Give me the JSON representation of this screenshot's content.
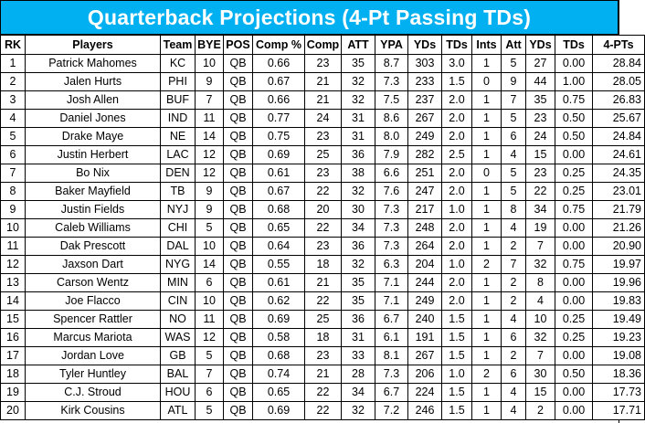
{
  "title": "Quarterback Projections (4-Pt Passing TDs)",
  "colors": {
    "title_background": "#00b0f0",
    "title_text": "#ffffff",
    "grid_lines": "#000000"
  },
  "columns": [
    "RK",
    "Players",
    "Team",
    "BYE",
    "POS",
    "Comp %",
    "Comp",
    "ATT",
    "YPA",
    "YDs",
    "TDs",
    "Ints",
    "Att",
    "YDs",
    "TDs",
    "4-PTs"
  ],
  "rows": [
    [
      "1",
      "Patrick Mahomes",
      "KC",
      "10",
      "QB",
      "0.66",
      "23",
      "35",
      "8.7",
      "303",
      "3.0",
      "1",
      "5",
      "27",
      "0.00",
      "28.84"
    ],
    [
      "2",
      "Jalen Hurts",
      "PHI",
      "9",
      "QB",
      "0.67",
      "21",
      "32",
      "7.3",
      "233",
      "1.5",
      "0",
      "9",
      "44",
      "1.00",
      "28.05"
    ],
    [
      "3",
      "Josh Allen",
      "BUF",
      "7",
      "QB",
      "0.66",
      "21",
      "32",
      "7.5",
      "237",
      "2.0",
      "1",
      "7",
      "35",
      "0.75",
      "26.83"
    ],
    [
      "4",
      "Daniel Jones",
      "IND",
      "11",
      "QB",
      "0.77",
      "24",
      "31",
      "8.6",
      "267",
      "2.0",
      "1",
      "5",
      "23",
      "0.50",
      "25.67"
    ],
    [
      "5",
      "Drake Maye",
      "NE",
      "14",
      "QB",
      "0.75",
      "23",
      "31",
      "8.0",
      "249",
      "2.0",
      "1",
      "6",
      "24",
      "0.50",
      "24.84"
    ],
    [
      "6",
      "Justin Herbert",
      "LAC",
      "12",
      "QB",
      "0.69",
      "25",
      "36",
      "7.9",
      "282",
      "2.5",
      "1",
      "4",
      "15",
      "0.00",
      "24.61"
    ],
    [
      "7",
      "Bo Nix",
      "DEN",
      "12",
      "QB",
      "0.61",
      "23",
      "38",
      "6.6",
      "251",
      "2.0",
      "0",
      "5",
      "23",
      "0.25",
      "24.35"
    ],
    [
      "8",
      "Baker Mayfield",
      "TB",
      "9",
      "QB",
      "0.67",
      "22",
      "32",
      "7.6",
      "247",
      "2.0",
      "1",
      "5",
      "22",
      "0.25",
      "23.01"
    ],
    [
      "9",
      "Justin Fields",
      "NYJ",
      "9",
      "QB",
      "0.68",
      "20",
      "30",
      "7.3",
      "217",
      "1.0",
      "1",
      "8",
      "34",
      "0.75",
      "21.79"
    ],
    [
      "10",
      "Caleb Williams",
      "CHI",
      "5",
      "QB",
      "0.65",
      "22",
      "34",
      "7.3",
      "248",
      "2.0",
      "1",
      "4",
      "19",
      "0.00",
      "21.26"
    ],
    [
      "11",
      "Dak Prescott",
      "DAL",
      "10",
      "QB",
      "0.64",
      "23",
      "36",
      "7.3",
      "264",
      "2.0",
      "1",
      "2",
      "7",
      "0.00",
      "20.90"
    ],
    [
      "12",
      "Jaxson Dart",
      "NYG",
      "14",
      "QB",
      "0.55",
      "18",
      "32",
      "6.3",
      "204",
      "1.0",
      "2",
      "7",
      "32",
      "0.75",
      "19.97"
    ],
    [
      "13",
      "Carson Wentz",
      "MIN",
      "6",
      "QB",
      "0.61",
      "21",
      "35",
      "7.1",
      "244",
      "2.0",
      "1",
      "2",
      "8",
      "0.00",
      "19.96"
    ],
    [
      "14",
      "Joe Flacco",
      "CIN",
      "10",
      "QB",
      "0.62",
      "22",
      "35",
      "7.1",
      "249",
      "2.0",
      "1",
      "2",
      "4",
      "0.00",
      "19.83"
    ],
    [
      "15",
      "Spencer Rattler",
      "NO",
      "11",
      "QB",
      "0.69",
      "25",
      "36",
      "6.7",
      "240",
      "1.5",
      "1",
      "4",
      "10",
      "0.25",
      "19.49"
    ],
    [
      "16",
      "Marcus Mariota",
      "WAS",
      "12",
      "QB",
      "0.58",
      "18",
      "31",
      "6.1",
      "191",
      "1.5",
      "1",
      "6",
      "32",
      "0.25",
      "19.23"
    ],
    [
      "17",
      "Jordan Love",
      "GB",
      "5",
      "QB",
      "0.68",
      "23",
      "33",
      "8.1",
      "267",
      "1.5",
      "1",
      "2",
      "7",
      "0.00",
      "19.08"
    ],
    [
      "18",
      "Tyler Huntley",
      "BAL",
      "7",
      "QB",
      "0.74",
      "21",
      "28",
      "7.3",
      "206",
      "1.0",
      "2",
      "6",
      "30",
      "0.50",
      "18.36"
    ],
    [
      "19",
      "C.J. Stroud",
      "HOU",
      "6",
      "QB",
      "0.65",
      "22",
      "34",
      "6.7",
      "224",
      "1.5",
      "1",
      "4",
      "15",
      "0.00",
      "17.73"
    ],
    [
      "20",
      "Kirk Cousins",
      "ATL",
      "5",
      "QB",
      "0.69",
      "22",
      "32",
      "7.2",
      "246",
      "1.5",
      "1",
      "4",
      "2",
      "0.00",
      "17.71"
    ]
  ]
}
